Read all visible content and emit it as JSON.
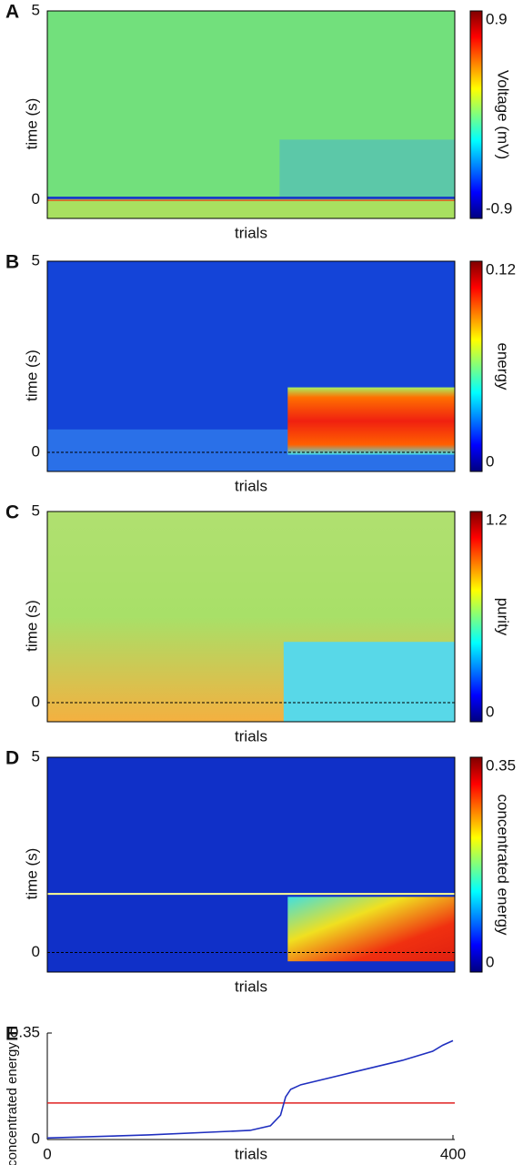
{
  "chart_data": [
    {
      "type": "heatmap",
      "panel_label": "A",
      "xlabel": "trials",
      "ylabel": "time (s)",
      "ylim": [
        -0.5,
        5
      ],
      "yticks": [
        0,
        5
      ],
      "colorbar_label": "Voltage (mV)",
      "clim": [
        -0.9,
        0.9
      ],
      "cticks": [
        -0.9,
        0.9
      ]
    },
    {
      "type": "heatmap",
      "panel_label": "B",
      "xlabel": "trials",
      "ylabel": "time (s)",
      "ylim": [
        -0.5,
        5
      ],
      "yticks": [
        0,
        5
      ],
      "colorbar_label": "energy",
      "clim": [
        0,
        0.12
      ],
      "cticks": [
        0,
        0.12
      ]
    },
    {
      "type": "heatmap",
      "panel_label": "C",
      "xlabel": "trials",
      "ylabel": "time (s)",
      "ylim": [
        -0.5,
        5
      ],
      "yticks": [
        0,
        5
      ],
      "colorbar_label": "purity",
      "clim": [
        0,
        1.2
      ],
      "cticks": [
        0,
        1.2
      ]
    },
    {
      "type": "heatmap",
      "panel_label": "D",
      "xlabel": "trials",
      "ylabel": "time (s)",
      "ylim": [
        -0.5,
        5
      ],
      "yticks": [
        0,
        5
      ],
      "colorbar_label": "concentrated energy",
      "clim": [
        0,
        0.35
      ],
      "cticks": [
        0,
        0.35
      ],
      "hline": 1.5,
      "hline_color": "#ffff90"
    },
    {
      "type": "line",
      "panel_label": "E",
      "xlabel": "trials",
      "ylabel": "concentrated energy",
      "xlim": [
        0,
        400
      ],
      "xticks": [
        0,
        400
      ],
      "ylim": [
        0,
        0.35
      ],
      "yticks": [
        0,
        0.35
      ],
      "series": [
        {
          "color": "#1f2fbf",
          "x": [
            0,
            100,
            200,
            220,
            230,
            235,
            240,
            250,
            300,
            350,
            380,
            390,
            400
          ],
          "values": [
            0.005,
            0.015,
            0.03,
            0.045,
            0.08,
            0.14,
            0.165,
            0.18,
            0.22,
            0.26,
            0.29,
            0.31,
            0.325
          ]
        }
      ],
      "hline": 0.12,
      "hline_color": "#e02020"
    }
  ]
}
